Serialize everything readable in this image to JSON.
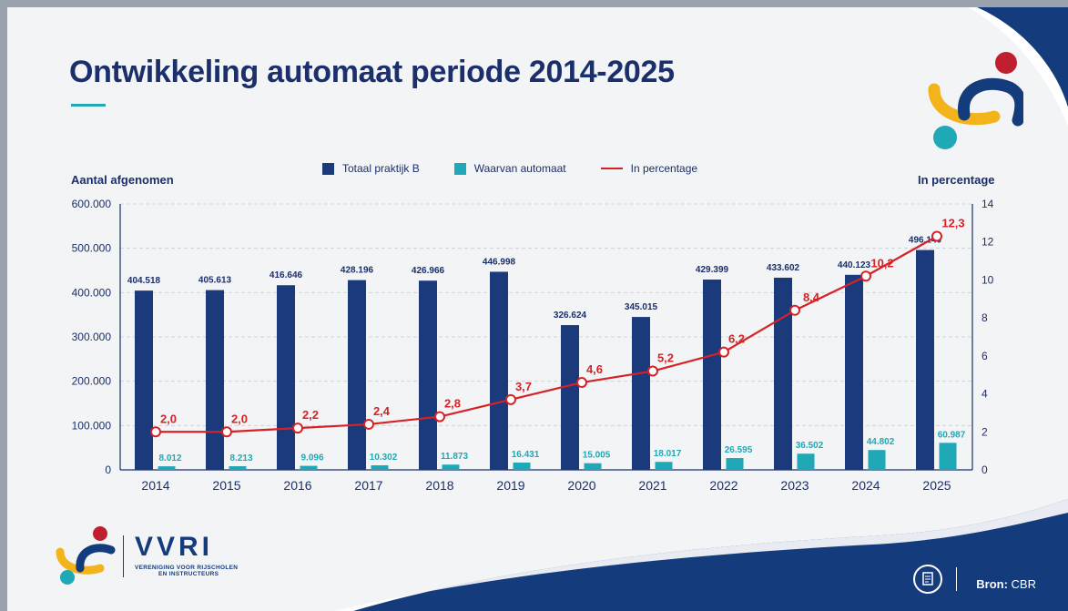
{
  "title": "Ontwikkeling automaat periode 2014-2025",
  "left_axis_title": "Aantal afgenomen",
  "right_axis_title": "In percentage",
  "legend": {
    "bar1": "Totaal praktijk B",
    "bar2": "Waarvan automaat",
    "line": "In percentage"
  },
  "colors": {
    "bar1": "#1a3a7c",
    "bar2": "#1fa8b5",
    "line": "#d62226",
    "brand_blue": "#143c7c"
  },
  "brand": {
    "name": "VVRI",
    "tagline1": "VERENIGING VOOR RIJSCHOLEN",
    "tagline2": "EN INSTRUCTEURS"
  },
  "source": {
    "label": "Bron:",
    "value": "CBR"
  },
  "chart_data": {
    "type": "bar",
    "categories": [
      "2014",
      "2015",
      "2016",
      "2017",
      "2018",
      "2019",
      "2020",
      "2021",
      "2022",
      "2023",
      "2024",
      "2025"
    ],
    "series": [
      {
        "name": "Totaal praktijk B",
        "type": "bar",
        "axis": "left",
        "values": [
          404518,
          405613,
          416646,
          428196,
          426966,
          446998,
          326624,
          345015,
          429399,
          433602,
          440123,
          496140
        ],
        "labels": [
          "404.518",
          "405.613",
          "416.646",
          "428.196",
          "426.966",
          "446.998",
          "326.624",
          "345.015",
          "429.399",
          "433.602",
          "440.123",
          "496.140"
        ]
      },
      {
        "name": "Waarvan automaat",
        "type": "bar",
        "axis": "left",
        "values": [
          8012,
          8213,
          9096,
          10302,
          11873,
          16431,
          15005,
          18017,
          26595,
          36502,
          44802,
          60987
        ],
        "labels": [
          "8.012",
          "8.213",
          "9.096",
          "10.302",
          "11.873",
          "16.431",
          "15.005",
          "18.017",
          "26.595",
          "36.502",
          "44.802",
          "60.987"
        ]
      },
      {
        "name": "In percentage",
        "type": "line",
        "axis": "right",
        "values": [
          2.0,
          2.0,
          2.2,
          2.4,
          2.8,
          3.7,
          4.6,
          5.2,
          6.2,
          8.4,
          10.2,
          12.3
        ],
        "labels": [
          "2,0",
          "2,0",
          "2,2",
          "2,4",
          "2,8",
          "3,7",
          "4,6",
          "5,2",
          "6,2",
          "8,4",
          "10,2",
          "12,3"
        ]
      }
    ],
    "y_left": {
      "min": 0,
      "max": 600000,
      "ticks": [
        "0",
        "100.000",
        "200.000",
        "300.000",
        "400.000",
        "500.000",
        "600.000"
      ]
    },
    "y_right": {
      "min": 0,
      "max": 14,
      "ticks": [
        "0",
        "2",
        "4",
        "6",
        "8",
        "10",
        "12",
        "14"
      ]
    },
    "grid": true,
    "legend_position": "top"
  }
}
